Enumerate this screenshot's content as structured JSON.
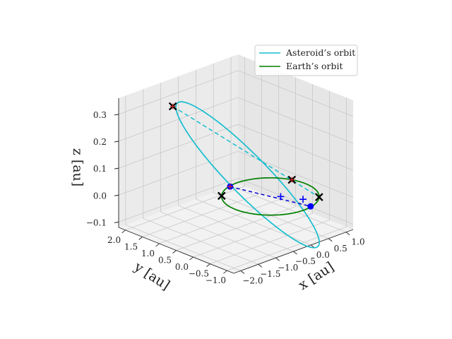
{
  "chart_data": {
    "type": "line",
    "projection": "3d",
    "title": "",
    "xlabel": "$x$ [au]",
    "ylabel": "$y$ [au]",
    "zlabel": "$z$ [au]",
    "axis_label_text": {
      "x": "x [au]",
      "y": "y [au]",
      "z": "z [au]"
    },
    "xlim": [
      -2.2,
      1.2
    ],
    "ylim": [
      -1.2,
      2.2
    ],
    "zlim": [
      -0.12,
      0.36
    ],
    "xticks": [
      -2.0,
      -1.5,
      -1.0,
      -0.5,
      0.0,
      0.5,
      1.0
    ],
    "yticks": [
      -1.0,
      -0.5,
      0.0,
      0.5,
      1.0,
      1.5,
      2.0
    ],
    "zticks": [
      -0.1,
      0.0,
      0.1,
      0.2,
      0.3
    ],
    "xtick_labels": [
      "−2.0",
      "−1.5",
      "−1.0",
      "−0.5",
      "0.0",
      "0.5",
      "1.0"
    ],
    "ytick_labels": [
      "−1.0",
      "−0.5",
      "0.0",
      "0.5",
      "1.0",
      "1.5",
      "2.0"
    ],
    "ztick_labels": [
      "−0.1",
      "0.0",
      "0.1",
      "0.2",
      "0.3"
    ],
    "grid": true,
    "legend_position": "top-right",
    "series": [
      {
        "name": "Asteroid’s orbit",
        "kind": "ellipse",
        "color": "#17becf",
        "semi_major_axis": 1.47,
        "eccentricity": 0.318,
        "perihelion_direction": [
          0.7,
          -0.714,
          0.0
        ],
        "node_line_direction": [
          0.7,
          -0.714,
          0.0
        ],
        "aphelion_z": 0.33
      },
      {
        "name": "Earth’s orbit",
        "kind": "circle",
        "color": "#008000",
        "radius": 1.0,
        "z": 0.0
      }
    ],
    "line_of_apsides": {
      "color": "#17becf",
      "style": "dashed"
    },
    "line_of_nodes": {
      "color": "#0000cc",
      "style": "dashed"
    },
    "points": [
      {
        "label": "asteroid aphelion",
        "x": -1.4,
        "y": 1.43,
        "z": 0.33,
        "marker": "x",
        "color": "#000000",
        "secondary": "+",
        "secondary_color": "#d62728"
      },
      {
        "label": "asteroid perihelion",
        "x": 0.7,
        "y": -0.714,
        "z": 0.0,
        "marker": "x",
        "color": "#000000"
      },
      {
        "label": "earth marker 1",
        "x": -0.7,
        "y": 0.714,
        "z": 0.0,
        "marker": "x",
        "color": "#000000"
      },
      {
        "label": "earth marker 2",
        "x": 0.94,
        "y": 0.34,
        "z": 0.0,
        "marker": "x",
        "color": "#000000",
        "secondary": "+",
        "secondary_color": "#d62728"
      },
      {
        "label": "node 1",
        "x": -0.23,
        "y": 0.95,
        "z": 0.0,
        "marker": "o",
        "color": "#0000ff",
        "secondary": "+",
        "secondary_color": "#d62728"
      },
      {
        "label": "node 2",
        "x": 0.23,
        "y": -0.95,
        "z": 0.0,
        "marker": "o",
        "color": "#0000ff"
      },
      {
        "label": "plus 1",
        "x": 0.15,
        "y": -0.15,
        "z": 0.0,
        "marker": "+",
        "color": "#0000ff"
      },
      {
        "label": "plus 2",
        "x": 0.38,
        "y": -0.57,
        "z": 0.0,
        "marker": "+",
        "color": "#0000ff"
      }
    ],
    "view": {
      "elev": 20,
      "azim": -135
    }
  }
}
